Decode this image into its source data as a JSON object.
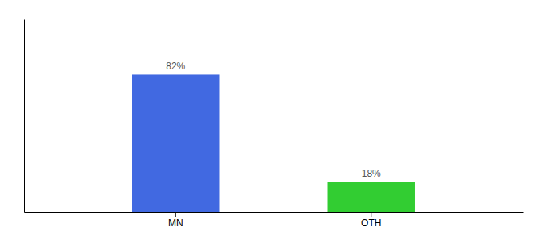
{
  "chart_data": {
    "type": "bar",
    "categories": [
      "MN",
      "OTH"
    ],
    "values": [
      82,
      18
    ],
    "colors": [
      "#4169e1",
      "#32cd32"
    ],
    "value_labels": [
      "82%",
      "18%"
    ],
    "data_labels": true,
    "ylim": [
      0,
      115
    ],
    "tick_labels": "x"
  }
}
